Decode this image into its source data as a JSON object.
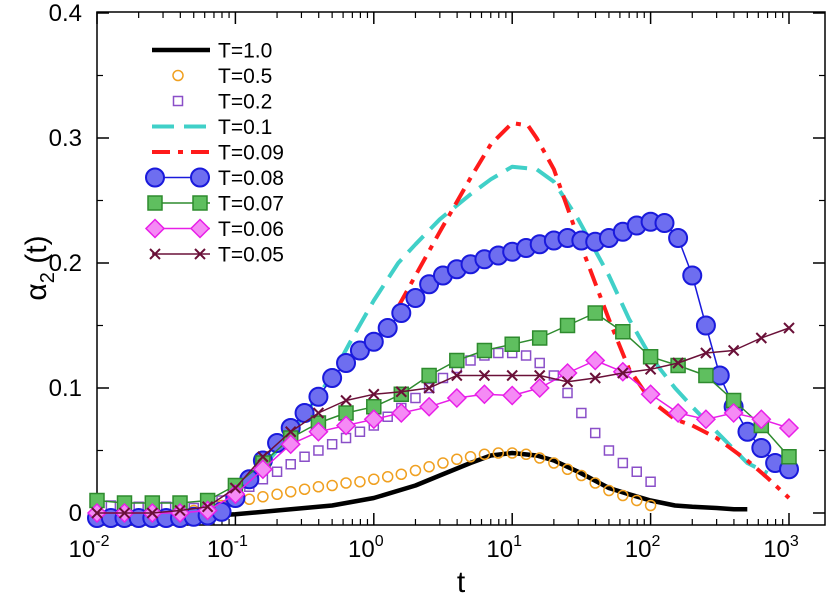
{
  "chart_data": {
    "type": "line",
    "title": "",
    "xlabel": "t",
    "ylabel": {
      "base": "α",
      "sub": "2",
      "suffix": " (t)"
    },
    "xscale": "log",
    "xlim": [
      0.01,
      2000
    ],
    "ylim": [
      -0.01,
      0.4
    ],
    "x_ticks": [
      {
        "value": 0.01,
        "base": "10",
        "exp": "-2"
      },
      {
        "value": 0.1,
        "base": "10",
        "exp": "-1"
      },
      {
        "value": 1,
        "base": "10",
        "exp": "0"
      },
      {
        "value": 10,
        "base": "10",
        "exp": "1"
      },
      {
        "value": 100,
        "base": "10",
        "exp": "2"
      },
      {
        "value": 1000,
        "base": "10",
        "exp": "3"
      }
    ],
    "y_ticks": [
      {
        "value": 0,
        "label": "0"
      },
      {
        "value": 0.1,
        "label": "0.1"
      },
      {
        "value": 0.2,
        "label": "0.2"
      },
      {
        "value": 0.3,
        "label": "0.3"
      },
      {
        "value": 0.4,
        "label": "0.4"
      }
    ],
    "legend_position": "top-left",
    "series": [
      {
        "name": "T=1.0",
        "color": "#000000",
        "style": "thick-line",
        "marker": "none",
        "x": [
          0.07,
          0.1,
          0.2,
          0.5,
          1,
          2,
          3,
          5,
          7,
          10,
          15,
          20,
          30,
          50,
          70,
          100,
          150,
          200,
          300,
          400,
          500
        ],
        "y": [
          -0.002,
          -0.001,
          0.002,
          0.006,
          0.012,
          0.022,
          0.03,
          0.04,
          0.046,
          0.048,
          0.046,
          0.042,
          0.033,
          0.02,
          0.015,
          0.01,
          0.006,
          0.005,
          0.004,
          0.003,
          0.003
        ]
      },
      {
        "name": "T=0.5",
        "color": "#f0a020",
        "style": "markers",
        "marker": "circle-open",
        "x": [
          0.01,
          0.0126,
          0.0158,
          0.02,
          0.0251,
          0.0316,
          0.0398,
          0.05,
          0.063,
          0.0794,
          0.1,
          0.126,
          0.158,
          0.2,
          0.251,
          0.316,
          0.398,
          0.5,
          0.63,
          0.794,
          1,
          1.26,
          1.58,
          2,
          2.51,
          3.16,
          3.98,
          5,
          6.3,
          7.94,
          10,
          12.6,
          15.8,
          20,
          25.1,
          31.6,
          39.8,
          50,
          63,
          79.4,
          100
        ],
        "y": [
          -0.003,
          -0.003,
          -0.002,
          -0.002,
          -0.002,
          -0.001,
          0,
          0.002,
          0.004,
          0.006,
          0.009,
          0.011,
          0.013,
          0.015,
          0.017,
          0.019,
          0.021,
          0.022,
          0.024,
          0.025,
          0.027,
          0.029,
          0.031,
          0.034,
          0.037,
          0.04,
          0.043,
          0.045,
          0.047,
          0.048,
          0.048,
          0.047,
          0.044,
          0.04,
          0.035,
          0.03,
          0.024,
          0.018,
          0.014,
          0.01,
          0.006
        ]
      },
      {
        "name": "T=0.2",
        "color": "#8a4fc8",
        "style": "markers",
        "marker": "square-open",
        "x": [
          0.01,
          0.0126,
          0.0158,
          0.02,
          0.0251,
          0.0316,
          0.0398,
          0.05,
          0.063,
          0.0794,
          0.1,
          0.126,
          0.158,
          0.2,
          0.251,
          0.316,
          0.398,
          0.5,
          0.63,
          0.794,
          1,
          1.26,
          1.58,
          2,
          2.51,
          3.16,
          3.98,
          5,
          6.3,
          7.94,
          10,
          12.6,
          15.8,
          20,
          25.1,
          31.6,
          39.8,
          50,
          63,
          79.4,
          100
        ],
        "y": [
          0.007,
          0.006,
          0.005,
          0.005,
          0.005,
          0.005,
          0.004,
          0.004,
          0.006,
          0.01,
          0.015,
          0.021,
          0.027,
          0.033,
          0.039,
          0.045,
          0.05,
          0.055,
          0.06,
          0.065,
          0.07,
          0.077,
          0.084,
          0.092,
          0.1,
          0.108,
          0.116,
          0.122,
          0.126,
          0.128,
          0.128,
          0.126,
          0.12,
          0.11,
          0.096,
          0.08,
          0.064,
          0.05,
          0.04,
          0.033,
          0.025
        ]
      },
      {
        "name": "T=0.1",
        "color": "#40d0c8",
        "style": "long-dash",
        "marker": "none",
        "x": [
          0.01,
          0.02,
          0.05,
          0.08,
          0.1,
          0.2,
          0.3,
          0.5,
          0.7,
          1,
          1.5,
          2,
          3,
          5,
          7,
          10,
          15,
          20,
          30,
          50,
          70,
          100,
          150,
          200,
          300,
          500,
          700
        ],
        "y": [
          -0.002,
          -0.003,
          -0.003,
          -0.001,
          0.012,
          0.05,
          0.075,
          0.11,
          0.14,
          0.17,
          0.2,
          0.215,
          0.235,
          0.255,
          0.267,
          0.277,
          0.275,
          0.265,
          0.235,
          0.19,
          0.155,
          0.125,
          0.1,
          0.085,
          0.065,
          0.04,
          0.032
        ]
      },
      {
        "name": "T=0.09",
        "color": "#ff1a1a",
        "style": "dash-dot",
        "marker": "none",
        "x": [
          1.5,
          2,
          3,
          5,
          7,
          10,
          13,
          15,
          20,
          30,
          50,
          70,
          100,
          150,
          200,
          300,
          500,
          700,
          1000
        ],
        "y": [
          0.165,
          0.19,
          0.225,
          0.268,
          0.295,
          0.312,
          0.31,
          0.3,
          0.275,
          0.22,
          0.155,
          0.115,
          0.09,
          0.075,
          0.07,
          0.06,
          0.042,
          0.028,
          0.012
        ]
      },
      {
        "name": "T=0.08",
        "color": "#1a1adc",
        "fill": "#6e6ef0",
        "style": "line-markers",
        "marker": "circle-filled",
        "x": [
          0.01,
          0.0126,
          0.0158,
          0.02,
          0.0251,
          0.0316,
          0.0398,
          0.05,
          0.063,
          0.0794,
          0.1,
          0.126,
          0.158,
          0.2,
          0.251,
          0.316,
          0.398,
          0.5,
          0.63,
          0.794,
          1,
          1.26,
          1.58,
          2,
          2.51,
          3.16,
          3.98,
          5,
          6.3,
          7.94,
          10,
          12.6,
          15.8,
          20,
          25.1,
          31.6,
          39.8,
          50,
          63,
          79.4,
          100,
          126,
          158,
          200,
          251,
          316,
          398,
          501,
          631,
          794,
          1000
        ],
        "y": [
          -0.004,
          -0.004,
          -0.004,
          -0.004,
          -0.004,
          -0.004,
          -0.004,
          -0.003,
          -0.002,
          0.001,
          0.012,
          0.027,
          0.042,
          0.056,
          0.068,
          0.08,
          0.093,
          0.108,
          0.12,
          0.13,
          0.137,
          0.148,
          0.16,
          0.172,
          0.183,
          0.19,
          0.195,
          0.199,
          0.203,
          0.206,
          0.209,
          0.212,
          0.215,
          0.218,
          0.22,
          0.218,
          0.217,
          0.22,
          0.225,
          0.23,
          0.233,
          0.232,
          0.22,
          0.19,
          0.15,
          0.11,
          0.085,
          0.065,
          0.052,
          0.04,
          0.035
        ]
      },
      {
        "name": "T=0.07",
        "color": "#2e8b2e",
        "fill": "#5fbf5f",
        "style": "line-markers",
        "marker": "square-filled",
        "x": [
          0.01,
          0.0158,
          0.0251,
          0.0398,
          0.063,
          0.1,
          0.158,
          0.251,
          0.398,
          0.63,
          1,
          1.58,
          2.51,
          3.98,
          6.3,
          10,
          15.8,
          25.1,
          39.8,
          63,
          100,
          158,
          251,
          398,
          631,
          1000
        ],
        "y": [
          0.01,
          0.008,
          0.008,
          0.008,
          0.01,
          0.022,
          0.04,
          0.06,
          0.072,
          0.08,
          0.085,
          0.095,
          0.11,
          0.122,
          0.13,
          0.135,
          0.14,
          0.15,
          0.16,
          0.145,
          0.125,
          0.118,
          0.11,
          0.09,
          0.07,
          0.045
        ]
      },
      {
        "name": "T=0.06",
        "color": "#e81ee8",
        "fill": "#f58af5",
        "style": "line-markers",
        "marker": "diamond-filled",
        "x": [
          0.01,
          0.0158,
          0.0251,
          0.0398,
          0.063,
          0.1,
          0.158,
          0.251,
          0.398,
          0.63,
          1,
          1.58,
          2.51,
          3.98,
          6.3,
          10,
          15.8,
          25.1,
          39.8,
          63,
          100,
          158,
          251,
          398,
          631,
          1000
        ],
        "y": [
          0,
          0,
          0,
          0,
          0.002,
          0.015,
          0.035,
          0.055,
          0.065,
          0.07,
          0.075,
          0.08,
          0.085,
          0.092,
          0.095,
          0.094,
          0.1,
          0.112,
          0.122,
          0.113,
          0.095,
          0.08,
          0.075,
          0.08,
          0.075,
          0.068
        ]
      },
      {
        "name": "T=0.05",
        "color": "#6a1038",
        "style": "line-markers",
        "marker": "x",
        "x": [
          0.01,
          0.0158,
          0.0251,
          0.0398,
          0.063,
          0.1,
          0.158,
          0.251,
          0.398,
          0.63,
          1,
          1.58,
          2.51,
          3.98,
          6.3,
          10,
          15.8,
          25.1,
          39.8,
          63,
          100,
          158,
          251,
          398,
          631,
          1000
        ],
        "y": [
          0,
          0,
          0,
          0.002,
          0.005,
          0.02,
          0.045,
          0.065,
          0.08,
          0.09,
          0.095,
          0.097,
          0.1,
          0.11,
          0.11,
          0.11,
          0.11,
          0.105,
          0.108,
          0.112,
          0.115,
          0.12,
          0.128,
          0.13,
          0.14,
          0.148
        ]
      }
    ]
  }
}
